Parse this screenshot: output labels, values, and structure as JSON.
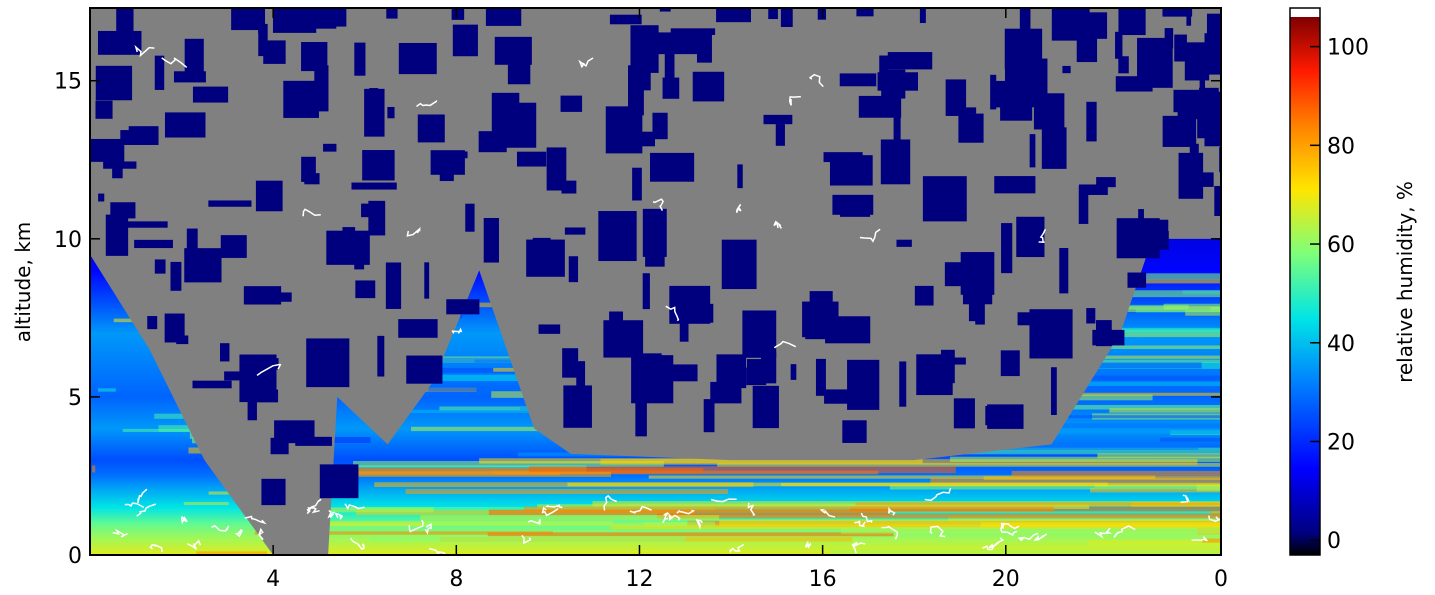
{
  "chart_data": {
    "type": "heatmap",
    "ylabel": "altitude, km",
    "x_ticks": [
      "4",
      "8",
      "12",
      "16",
      "20",
      "0"
    ],
    "y_ticks": [
      0,
      5,
      10,
      15
    ],
    "ylim": [
      0,
      17.3
    ],
    "xlim_hours": [
      0,
      24.7
    ],
    "colorbar": {
      "label": "relative humidity, %",
      "ticks": [
        0,
        20,
        40,
        60,
        80,
        100
      ],
      "range": [
        -3,
        106
      ],
      "colormap": "jet",
      "over_color": "#ffffff"
    },
    "masked_color": "#808080",
    "contour_color": "#ffffff",
    "rh_profile_by_altitude_km": [
      {
        "alt": 0.0,
        "rh": 68
      },
      {
        "alt": 0.5,
        "rh": 62
      },
      {
        "alt": 1.0,
        "rh": 55
      },
      {
        "alt": 1.5,
        "rh": 45
      },
      {
        "alt": 2.0,
        "rh": 38
      },
      {
        "alt": 2.5,
        "rh": 30
      },
      {
        "alt": 3.0,
        "rh": 25
      },
      {
        "alt": 4.0,
        "rh": 35
      },
      {
        "alt": 5.0,
        "rh": 28
      },
      {
        "alt": 7.0,
        "rh": 35
      },
      {
        "alt": 9.0,
        "rh": 15
      },
      {
        "alt": 12.0,
        "rh": 5
      }
    ],
    "gray_mask_bottom_by_hour": [
      {
        "t": 0.0,
        "alt": 9.5
      },
      {
        "t": 1.3,
        "alt": 6.5
      },
      {
        "t": 2.5,
        "alt": 3.0
      },
      {
        "t": 4.0,
        "alt": 0.0
      },
      {
        "t": 5.2,
        "alt": 0.0
      },
      {
        "t": 5.4,
        "alt": 5.0
      },
      {
        "t": 6.5,
        "alt": 3.5
      },
      {
        "t": 7.5,
        "alt": 5.5
      },
      {
        "t": 8.5,
        "alt": 9.0
      },
      {
        "t": 9.7,
        "alt": 4.0
      },
      {
        "t": 10.5,
        "alt": 3.2
      },
      {
        "t": 14.0,
        "alt": 3.0
      },
      {
        "t": 18.0,
        "alt": 3.0
      },
      {
        "t": 21.0,
        "alt": 3.5
      },
      {
        "t": 22.5,
        "alt": 7.0
      },
      {
        "t": 23.2,
        "alt": 10.0
      },
      {
        "t": 24.7,
        "alt": 10.0
      }
    ]
  }
}
